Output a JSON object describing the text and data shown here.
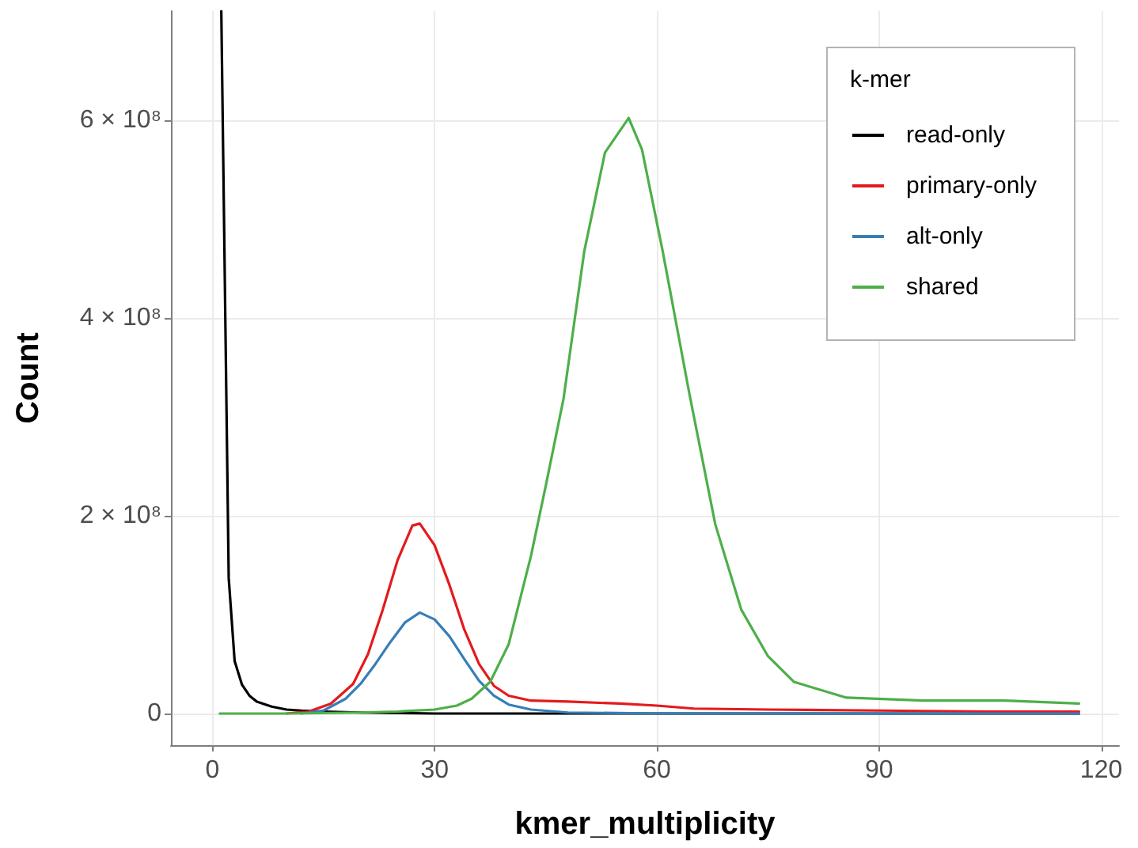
{
  "chart_data": {
    "type": "line",
    "xlabel": "kmer_multiplicity",
    "ylabel": "Count",
    "legend_title": "k-mer",
    "legend": "top right",
    "grid": true,
    "marker": "none",
    "line_style": "solid",
    "xlim": [
      -5.6,
      122.4
    ],
    "xticks": [
      0,
      30,
      60,
      90,
      120
    ],
    "ylim": [
      -32000000,
      710000000
    ],
    "yticks": [
      {
        "value": 0,
        "label": "0"
      },
      {
        "value": 200000000,
        "label": "2 × 10⁸"
      },
      {
        "value": 400000000,
        "label": "4 × 10⁸"
      },
      {
        "value": 600000000,
        "label": "6 × 10⁸"
      }
    ],
    "series": [
      {
        "name": "read-only",
        "color": "#000000",
        "x": [
          1.2,
          2.2,
          3,
          4,
          5,
          6,
          8,
          10,
          12,
          15,
          20,
          30,
          50,
          80,
          117
        ],
        "values": [
          710000000,
          137000000,
          53000000,
          29000000,
          18000000,
          12000000,
          7000000,
          4000000,
          3000000,
          2000000,
          1000000,
          0,
          0,
          0,
          0
        ]
      },
      {
        "name": "primary-only",
        "color": "#e41a1c",
        "x": [
          10,
          13,
          16,
          19,
          21,
          23,
          25,
          27,
          28,
          30,
          32,
          34,
          36,
          38,
          40,
          43,
          48,
          55,
          60,
          65,
          75,
          90,
          105,
          117
        ],
        "values": [
          0,
          2000000,
          10000000,
          30000000,
          60000000,
          105000000,
          155000000,
          190000000,
          192000000,
          170000000,
          130000000,
          85000000,
          50000000,
          28000000,
          18000000,
          13000000,
          12000000,
          10000000,
          8000000,
          5000000,
          4000000,
          3000000,
          2000000,
          2000000
        ]
      },
      {
        "name": "alt-only",
        "color": "#377eb8",
        "x": [
          12,
          15,
          18,
          20,
          22,
          24,
          26,
          28,
          30,
          32,
          34,
          36,
          38,
          40,
          43,
          48,
          60,
          117
        ],
        "values": [
          0,
          3000000,
          15000000,
          30000000,
          50000000,
          72000000,
          92000000,
          102000000,
          95000000,
          78000000,
          55000000,
          33000000,
          18000000,
          9000000,
          4000000,
          1000000,
          0,
          0
        ]
      },
      {
        "name": "shared",
        "color": "#4daf4a",
        "x": [
          1,
          10,
          20,
          25,
          30,
          33,
          35,
          37.5,
          40,
          43,
          45,
          47.4,
          50.2,
          53,
          56.2,
          58,
          60.8,
          64.4,
          67.9,
          71.4,
          75,
          78.5,
          85.6,
          96,
          107,
          117
        ],
        "values": [
          0,
          0,
          1000000,
          2000000,
          4000000,
          8000000,
          15000000,
          32000000,
          70000000,
          159000000,
          230000000,
          318000000,
          467000000,
          567000000,
          602000000,
          570000000,
          467000000,
          323000000,
          191000000,
          105000000,
          58000000,
          32000000,
          16000000,
          13000000,
          13000000,
          10000000
        ]
      }
    ]
  }
}
